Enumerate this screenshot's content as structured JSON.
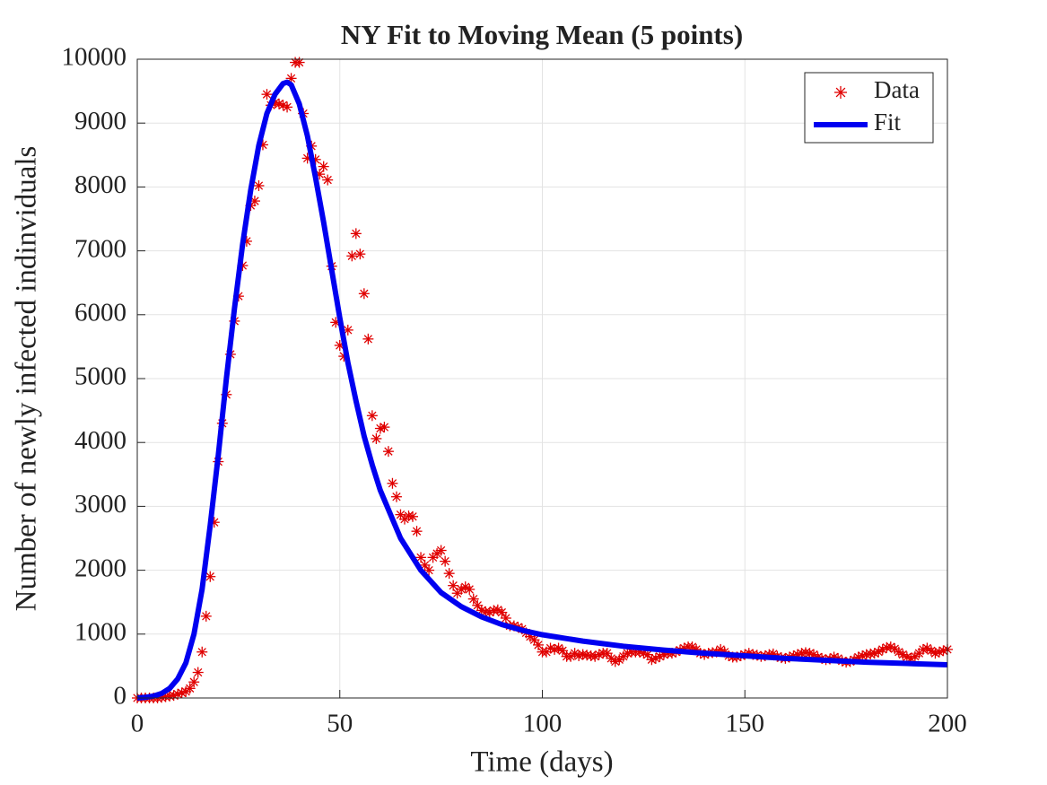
{
  "chart_data": {
    "type": "scatter-fit",
    "title": "NY Fit to Moving Mean (5 points)",
    "x_label": "Time (days)",
    "y_label": "Number of newly infected indinviduals",
    "xlim": [
      0,
      200
    ],
    "xticks": [
      0,
      50,
      100,
      150,
      200
    ],
    "ylim": [
      0,
      10000
    ],
    "yticks": [
      0,
      1000,
      2000,
      3000,
      4000,
      5000,
      6000,
      7000,
      8000,
      9000,
      10000
    ],
    "grid": true,
    "legend": "upper-right",
    "series": [
      {
        "name": "Data",
        "color": "#e00000",
        "marker": "asterisk",
        "x": [
          0,
          1,
          2,
          3,
          4,
          5,
          6,
          7,
          8,
          9,
          10,
          11,
          12,
          13,
          14,
          15,
          16,
          17,
          18,
          19,
          20,
          21,
          22,
          23,
          24,
          25,
          26,
          27,
          28,
          29,
          30,
          31,
          32,
          33,
          34,
          35,
          36,
          37,
          38,
          39,
          40,
          41,
          42,
          43,
          44,
          45,
          46,
          47,
          48,
          49,
          50,
          51,
          52,
          53,
          54,
          55,
          56,
          57,
          58,
          59,
          60,
          61,
          62,
          63,
          64,
          65,
          66,
          67,
          68,
          69,
          70,
          71,
          72,
          73,
          74,
          75,
          76,
          77,
          78,
          79,
          80,
          81,
          82,
          83,
          84,
          85,
          86,
          87,
          88,
          89,
          90,
          91,
          92,
          93,
          94,
          95,
          96,
          97,
          98,
          99,
          100,
          101,
          102,
          103,
          104,
          105,
          106,
          107,
          108,
          109,
          110,
          111,
          112,
          113,
          114,
          115,
          116,
          117,
          118,
          119,
          120,
          121,
          122,
          123,
          124,
          125,
          126,
          127,
          128,
          129,
          130,
          131,
          132,
          133,
          134,
          135,
          136,
          137,
          138,
          139,
          140,
          141,
          142,
          143,
          144,
          145,
          146,
          147,
          148,
          149,
          150,
          151,
          152,
          153,
          154,
          155,
          156,
          157,
          158,
          159,
          160,
          161,
          162,
          163,
          164,
          165,
          166,
          167,
          168,
          169,
          170,
          171,
          172,
          173,
          174,
          175,
          176,
          177,
          178,
          179,
          180,
          181,
          182,
          183,
          184,
          185,
          186,
          187,
          188,
          189,
          190,
          191,
          192,
          193,
          194,
          195,
          196,
          197,
          198,
          199,
          200
        ],
        "values": [
          0,
          0,
          0,
          0,
          0,
          0,
          10,
          20,
          30,
          40,
          60,
          80,
          100,
          150,
          250,
          400,
          720,
          1280,
          1900,
          2750,
          3700,
          4300,
          4750,
          5380,
          5900,
          6290,
          6770,
          7150,
          7710,
          7780,
          8020,
          8660,
          9450,
          9280,
          9320,
          9300,
          9280,
          9250,
          9700,
          9950,
          9950,
          9150,
          8450,
          8640,
          8430,
          8200,
          8320,
          8110,
          6760,
          5880,
          5520,
          5350,
          5760,
          6920,
          7270,
          6950,
          6330,
          5620,
          4420,
          4060,
          4220,
          4240,
          3860,
          3360,
          3150,
          2870,
          2800,
          2850,
          2840,
          2610,
          2200,
          2080,
          2000,
          2200,
          2260,
          2310,
          2140,
          1950,
          1760,
          1640,
          1700,
          1740,
          1700,
          1550,
          1450,
          1370,
          1350,
          1340,
          1370,
          1380,
          1340,
          1250,
          1130,
          1130,
          1110,
          1080,
          1020,
          960,
          910,
          830,
          720,
          720,
          780,
          760,
          780,
          740,
          650,
          650,
          700,
          660,
          680,
          670,
          660,
          650,
          680,
          700,
          700,
          620,
          570,
          600,
          650,
          700,
          720,
          720,
          720,
          700,
          680,
          600,
          620,
          650,
          680,
          700,
          700,
          720,
          750,
          780,
          800,
          800,
          760,
          700,
          680,
          700,
          710,
          720,
          760,
          720,
          660,
          640,
          640,
          660,
          680,
          700,
          680,
          670,
          650,
          660,
          680,
          690,
          650,
          630,
          620,
          640,
          660,
          680,
          700,
          710,
          700,
          680,
          640,
          620,
          600,
          610,
          640,
          620,
          580,
          560,
          570,
          600,
          640,
          660,
          680,
          690,
          700,
          720,
          760,
          790,
          800,
          770,
          720,
          680,
          640,
          620,
          650,
          700,
          760,
          780,
          740,
          700,
          720,
          740,
          760
        ]
      },
      {
        "name": "Fit",
        "color": "#0000f0",
        "x": [
          0,
          2,
          4,
          6,
          8,
          10,
          12,
          14,
          16,
          18,
          20,
          22,
          24,
          26,
          28,
          30,
          32,
          34,
          36,
          37,
          38,
          40,
          42,
          44,
          46,
          48,
          50,
          52,
          54,
          56,
          58,
          60,
          65,
          70,
          75,
          80,
          85,
          90,
          95,
          100,
          110,
          120,
          130,
          140,
          150,
          160,
          170,
          180,
          190,
          200
        ],
        "values": [
          0,
          10,
          30,
          70,
          150,
          300,
          550,
          1000,
          1700,
          2700,
          3800,
          5000,
          6100,
          7100,
          7950,
          8650,
          9150,
          9450,
          9620,
          9640,
          9600,
          9300,
          8800,
          8150,
          7450,
          6700,
          5950,
          5250,
          4650,
          4100,
          3650,
          3250,
          2500,
          2000,
          1650,
          1430,
          1270,
          1150,
          1060,
          990,
          890,
          810,
          750,
          700,
          660,
          620,
          590,
          560,
          540,
          520
        ]
      }
    ]
  }
}
